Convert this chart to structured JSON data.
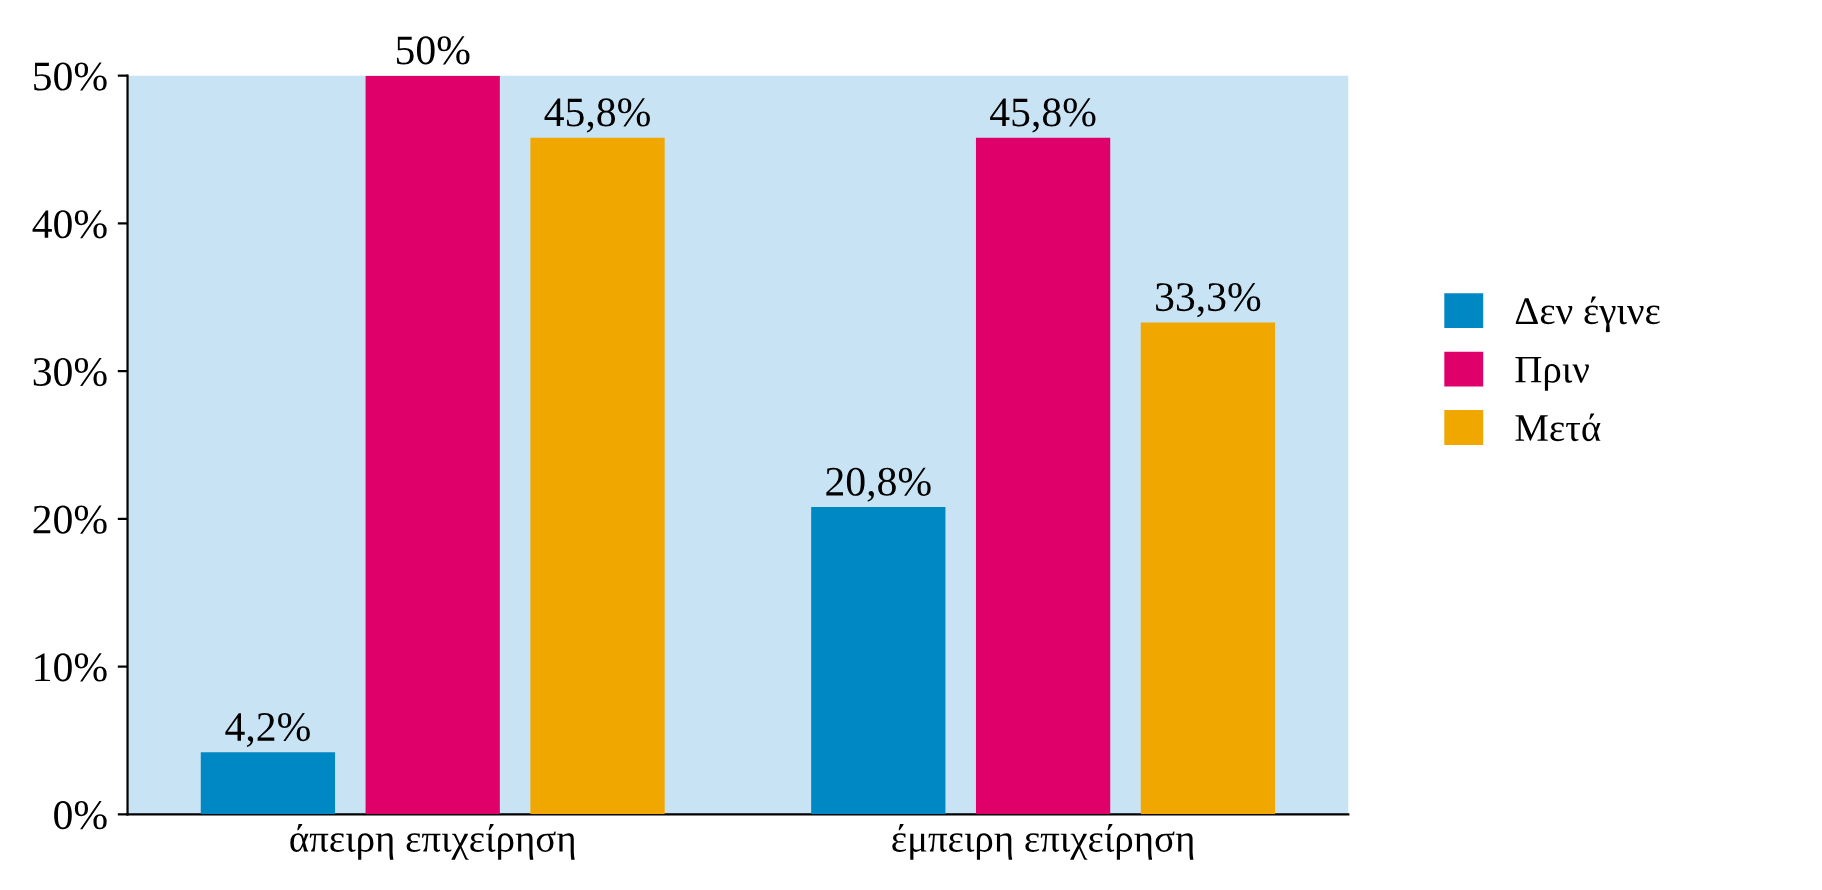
{
  "chart_data": {
    "type": "bar",
    "categories": [
      "άπειρη επιχείρηση",
      "έμπειρη επιχείρηση"
    ],
    "series": [
      {
        "name": "Δεν έγινε",
        "color": "#0088c4",
        "values": [
          4.2,
          20.8
        ],
        "value_labels": [
          "4,2%",
          "20,8%"
        ]
      },
      {
        "name": "Πριν",
        "color": "#e0006a",
        "values": [
          50,
          45.8
        ],
        "value_labels": [
          "50%",
          "45,8%"
        ]
      },
      {
        "name": "Μετά",
        "color": "#f0a800",
        "values": [
          45.8,
          33.3
        ],
        "value_labels": [
          "45,8%",
          "33,3%"
        ]
      }
    ],
    "ylim": [
      0,
      50
    ],
    "yticks": [
      {
        "value": 0,
        "label": "0%"
      },
      {
        "value": 10,
        "label": "10%"
      },
      {
        "value": 20,
        "label": "20%"
      },
      {
        "value": 30,
        "label": "30%"
      },
      {
        "value": 40,
        "label": "40%"
      },
      {
        "value": 50,
        "label": "50%"
      }
    ],
    "grid": false,
    "legend": "right"
  }
}
